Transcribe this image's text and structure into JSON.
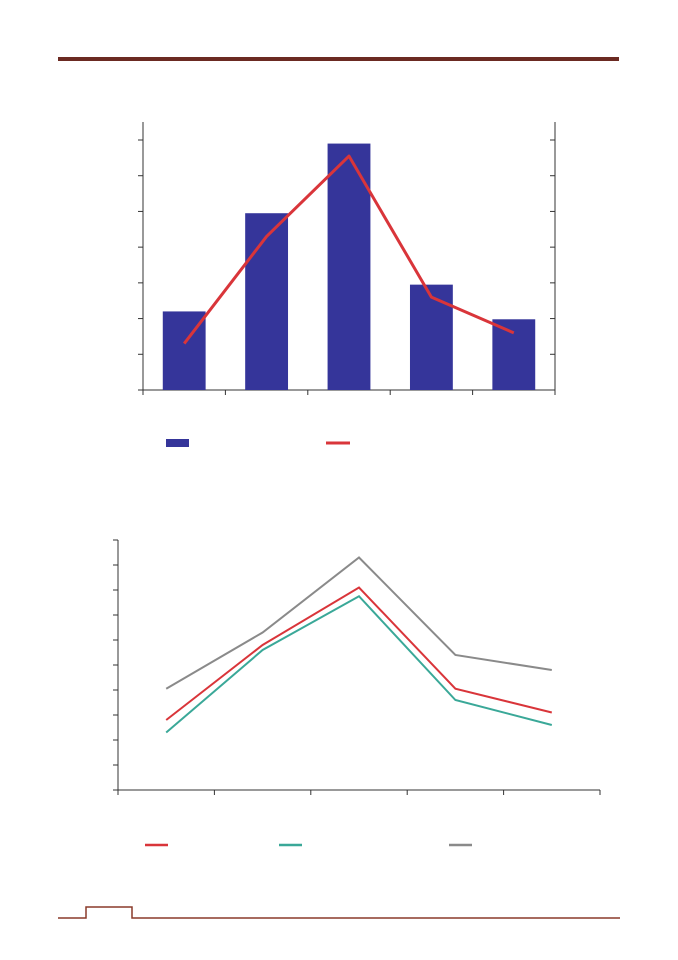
{
  "page": {
    "header_rule_color": "#6b2a22",
    "footer_rule_color": "#8a3a2a"
  },
  "chart_data": [
    {
      "type": "bar",
      "categories": [
        "",
        "",
        "",
        "",
        ""
      ],
      "bar_color": "#35359a",
      "line_color": "#d9353a",
      "y_left_ticks": 7,
      "y_right_ticks": 7,
      "series": [
        {
          "kind": "bar",
          "values": [
            2.2,
            4.95,
            6.9,
            2.95,
            1.98
          ]
        },
        {
          "kind": "line",
          "axis": "right",
          "values": [
            1.3,
            4.3,
            6.55,
            2.6,
            1.6
          ]
        }
      ],
      "ylim": [
        0,
        7.5
      ],
      "grid": false,
      "legend_position": "bottom"
    },
    {
      "type": "line",
      "categories": [
        "",
        "",
        "",
        "",
        ""
      ],
      "series": [
        {
          "color": "#d9353a",
          "values": [
            2.8,
            5.8,
            8.1,
            4.05,
            3.1
          ]
        },
        {
          "color": "#3aa898",
          "values": [
            2.3,
            5.6,
            7.75,
            3.6,
            2.6
          ]
        },
        {
          "color": "#8a8a8a",
          "values": [
            4.05,
            6.3,
            9.3,
            5.4,
            4.8
          ]
        }
      ],
      "y_ticks": 10,
      "ylim": [
        0,
        10
      ],
      "grid": false,
      "legend_position": "bottom"
    }
  ]
}
